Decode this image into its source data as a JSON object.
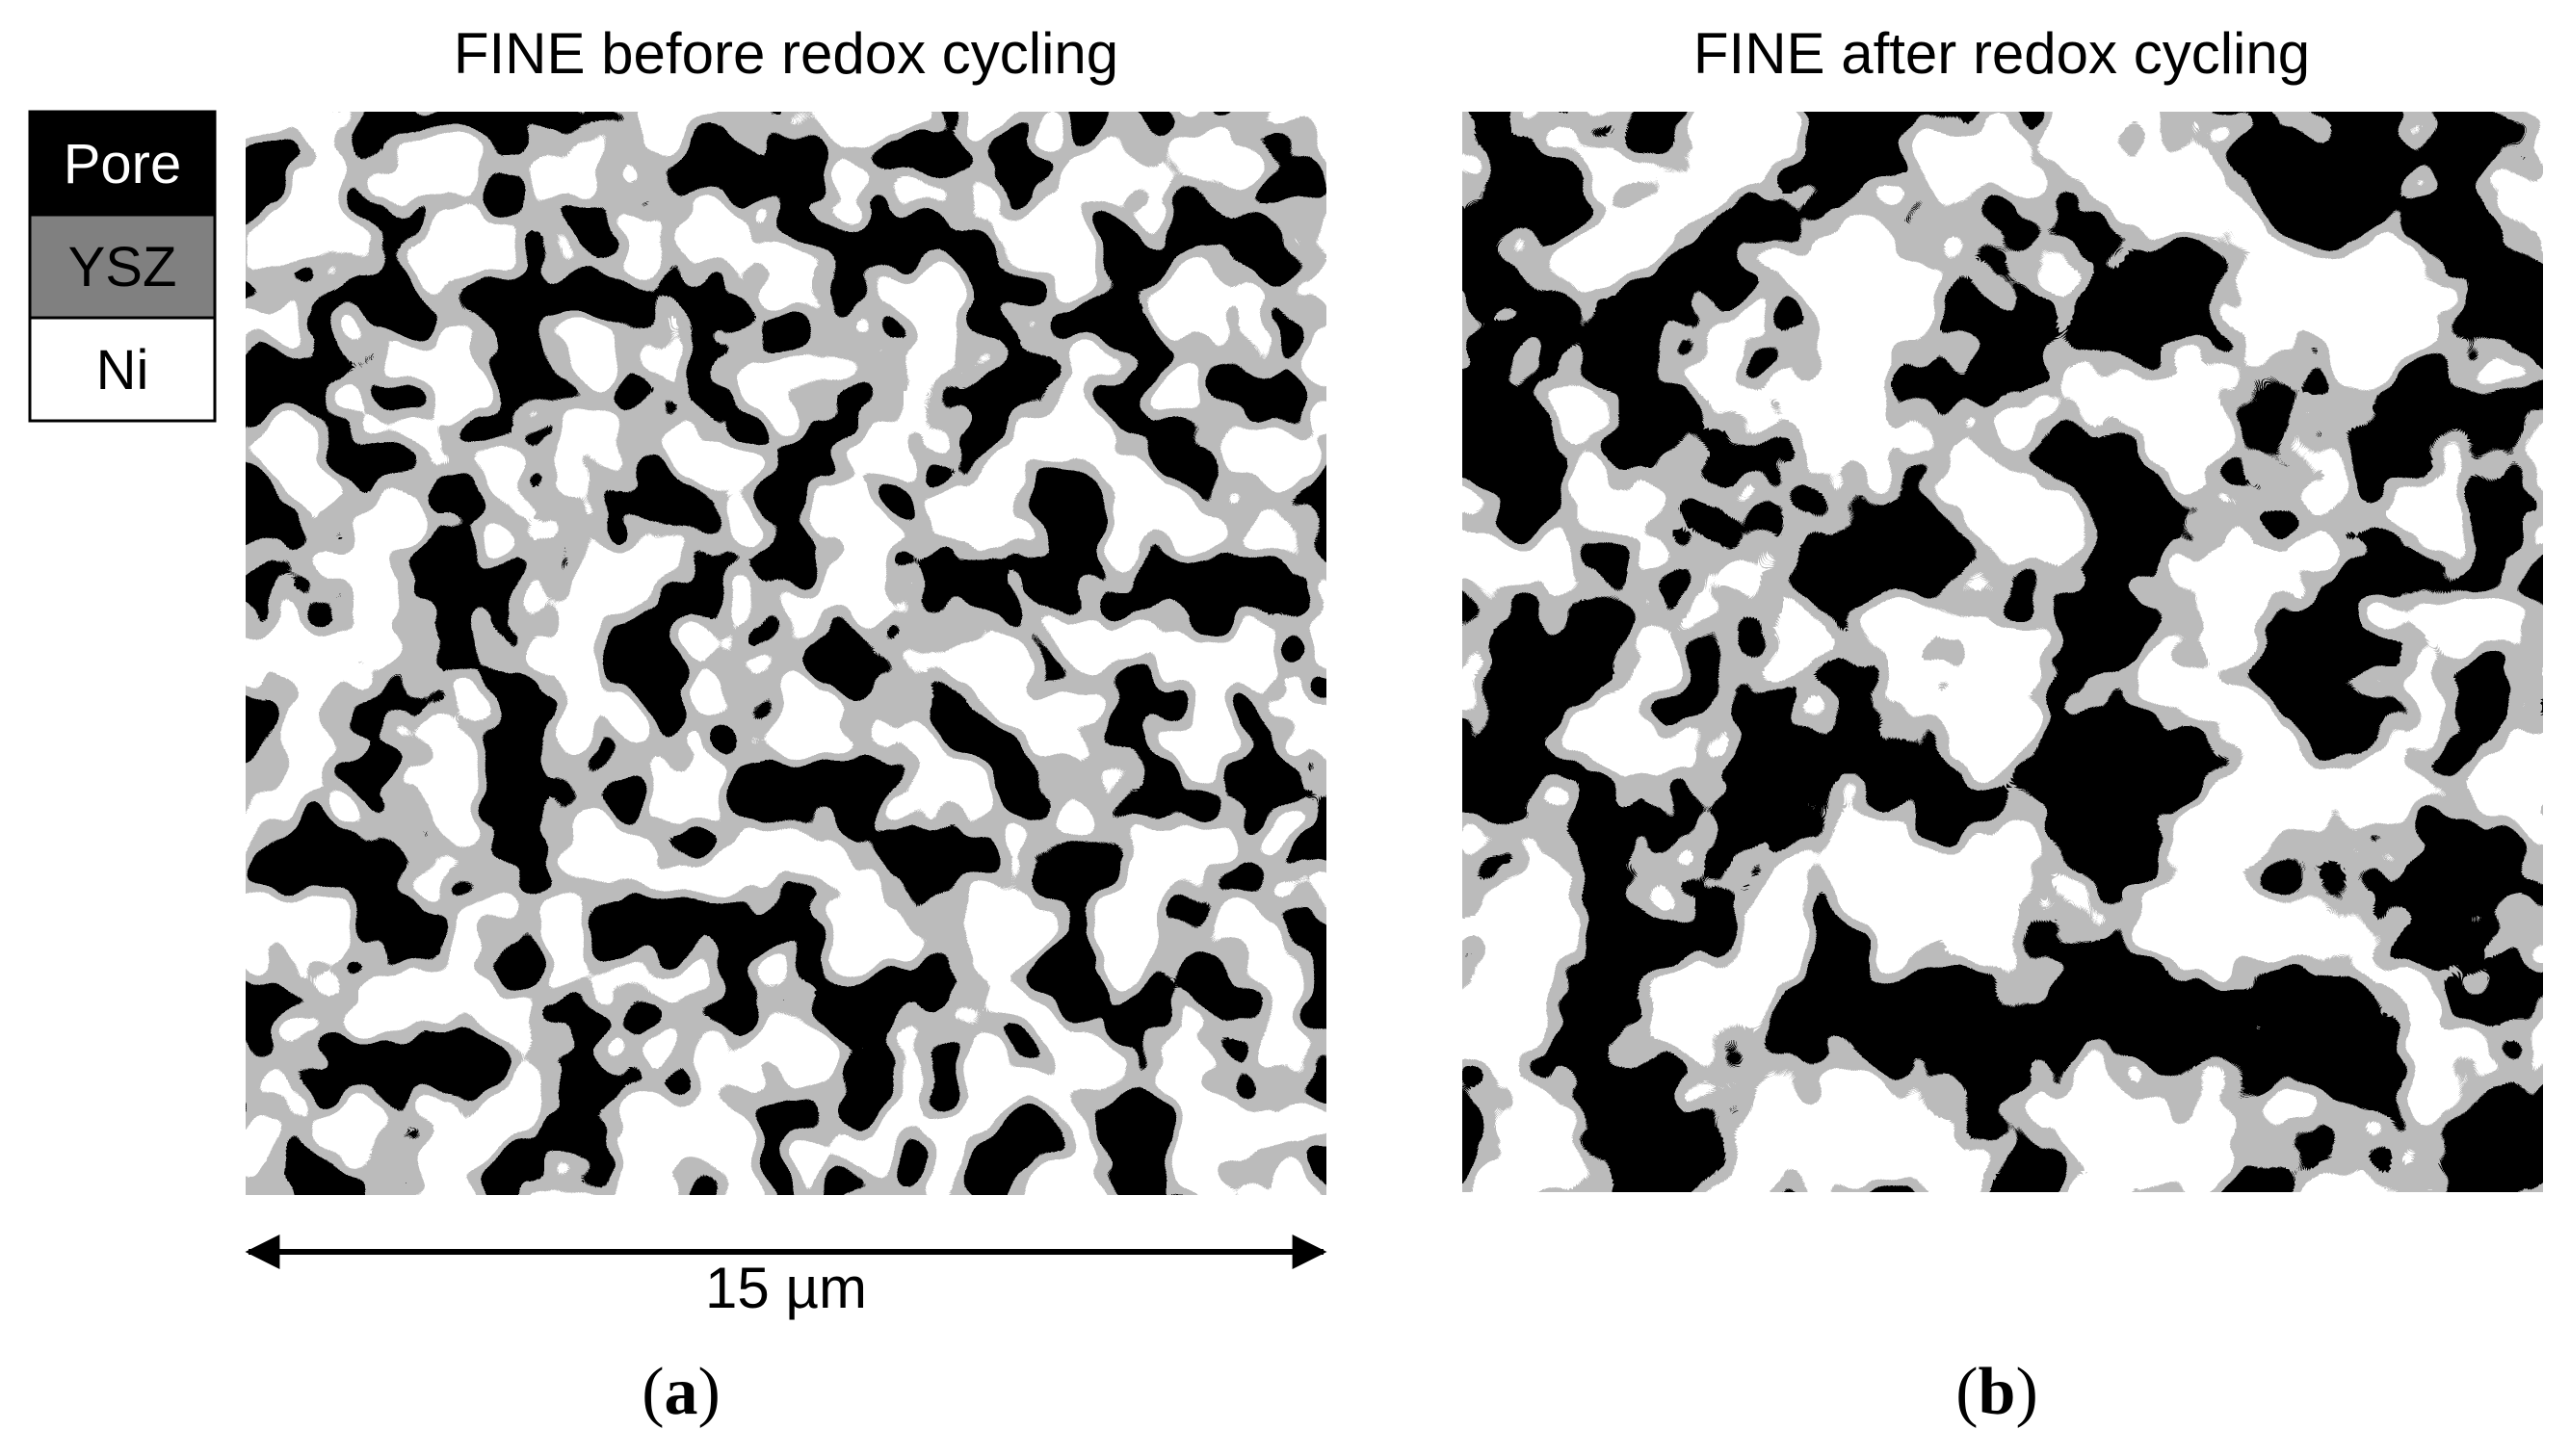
{
  "legend": [
    "Pore",
    "YSZ",
    "Ni"
  ],
  "panels": [
    {
      "title": "FINE before redox cycling",
      "label": "(a)",
      "scale_bar": "15 µm"
    },
    {
      "title": "FINE after redox cycling",
      "label": "(b)"
    }
  ]
}
